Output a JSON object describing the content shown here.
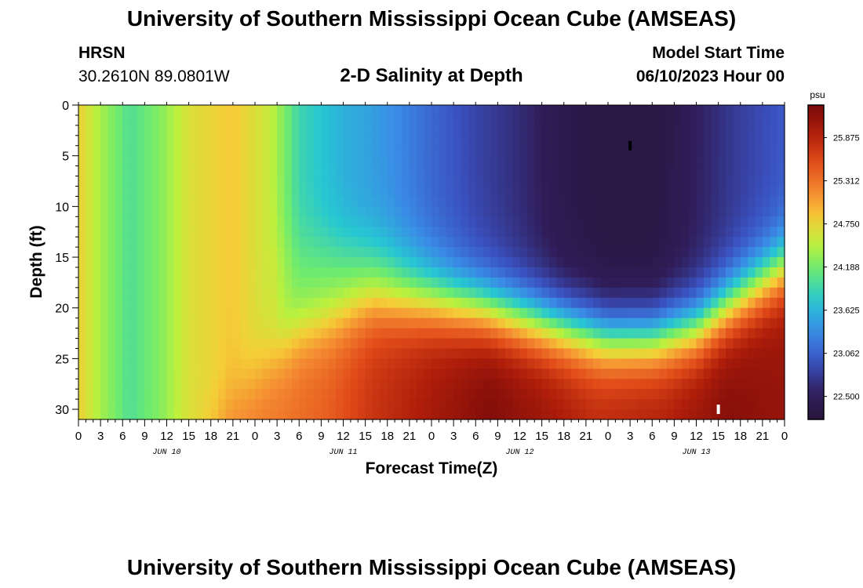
{
  "header": {
    "title_top": "University of Southern Mississippi Ocean Cube (AMSEAS)",
    "title_bottom": "University of Southern Mississippi Ocean Cube (AMSEAS)",
    "station": "HRSN",
    "coords": "30.2610N  89.0801W",
    "subtitle": "2-D Salinity at Depth",
    "model_start_label": "Model Start Time",
    "model_start_value": "06/10/2023 Hour 00"
  },
  "chart_data": {
    "type": "heatmap",
    "title": "2-D Salinity at Depth",
    "xlabel": "Forecast Time(Z)",
    "ylabel": "Depth (ft)",
    "x_hours_range": [
      0,
      96
    ],
    "x_tick_labels": [
      "0",
      "3",
      "6",
      "9",
      "12",
      "15",
      "18",
      "21",
      "0",
      "3",
      "6",
      "9",
      "12",
      "15",
      "18",
      "21",
      "0",
      "3",
      "6",
      "9",
      "12",
      "15",
      "18",
      "21",
      "0",
      "3",
      "6",
      "9",
      "12",
      "15",
      "18",
      "21",
      "0"
    ],
    "date_labels": [
      "JUN 10",
      "JUN 11",
      "JUN 12",
      "JUN 13"
    ],
    "y_range": [
      0,
      31
    ],
    "y_ticks": [
      0,
      5,
      10,
      15,
      20,
      25,
      30
    ],
    "colorbar": {
      "unit": "psu",
      "min": 22.2,
      "max": 26.3,
      "ticks": [
        25.875,
        25.312,
        24.75,
        24.188,
        23.625,
        23.062,
        22.5
      ],
      "tick_labels": [
        "25.875",
        "25.312",
        "24.750",
        "24.188",
        "23.625",
        "23.062",
        "22.500"
      ]
    },
    "markers": [
      {
        "hour": 75,
        "depth": 4.0,
        "color": "#000000"
      },
      {
        "hour": 87,
        "depth": 30.0,
        "color": "#ffffff"
      }
    ],
    "field_description": "Fresher water (~22.4 psu) near surface during Jun 12-13; saltier water (~26 psu) near bottom"
  }
}
